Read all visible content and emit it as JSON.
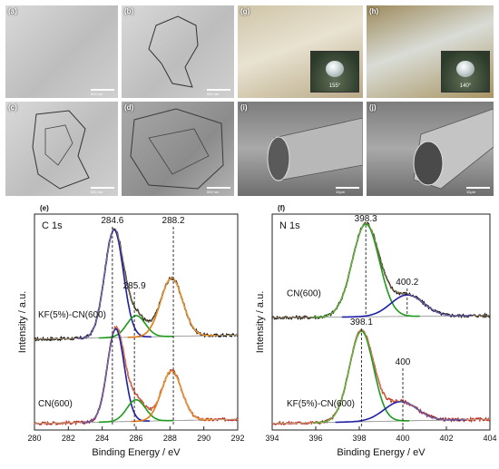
{
  "images": [
    {
      "label": "(a)",
      "scale": "500 nm"
    },
    {
      "label": "(b)",
      "scale": "500 nm"
    },
    {
      "label": "(c)",
      "scale": "500 nm"
    },
    {
      "label": "(d)",
      "scale": "500 nm"
    },
    {
      "label": "(g)",
      "angle": "155°"
    },
    {
      "label": "(h)",
      "angle": "140°"
    },
    {
      "label": "(i)",
      "scale": "10μm"
    },
    {
      "label": "(j)",
      "scale": "10μm"
    }
  ],
  "chart_data": [
    {
      "type": "line",
      "panel_label": "(e)",
      "title": "C 1s",
      "xlabel": "Binding Energy / eV",
      "ylabel": "Intensity / a.u.",
      "xlim": [
        280,
        292
      ],
      "xticks": [
        280,
        282,
        284,
        286,
        288,
        290,
        292
      ],
      "ylim": [
        0,
        1
      ],
      "peak_labels": [
        {
          "x": 284.6,
          "text": "284.6"
        },
        {
          "x": 285.9,
          "text": "285.9"
        },
        {
          "x": 288.2,
          "text": "288.2"
        }
      ],
      "series": [
        {
          "name": "KF(5%)-CN(600)",
          "offset": 0.42,
          "baseline": 0.02,
          "components": [
            {
              "center": 284.7,
              "height": 0.5,
              "sigma": 0.55,
              "color": "#1f1fa8"
            },
            {
              "center": 286.0,
              "height": 0.1,
              "sigma": 0.55,
              "color": "#1b9a1b"
            },
            {
              "center": 288.1,
              "height": 0.27,
              "sigma": 0.65,
              "color": "#e07a10"
            }
          ]
        },
        {
          "name": "CN(600)",
          "offset": 0.03,
          "baseline": 0.02,
          "components": [
            {
              "center": 284.8,
              "height": 0.43,
              "sigma": 0.5,
              "color": "#1f1fa8"
            },
            {
              "center": 286.0,
              "height": 0.1,
              "sigma": 0.55,
              "color": "#1b9a1b"
            },
            {
              "center": 288.1,
              "height": 0.23,
              "sigma": 0.6,
              "color": "#e07a10"
            }
          ]
        }
      ]
    },
    {
      "type": "line",
      "panel_label": "(f)",
      "title": "N 1s",
      "xlabel": "Binding Energy / eV",
      "ylabel": "Intensity / a.u.",
      "xlim": [
        394,
        404
      ],
      "xticks": [
        394,
        396,
        398,
        400,
        402,
        404
      ],
      "ylim": [
        0,
        1
      ],
      "peak_labels": [
        {
          "x": 398.3,
          "text": "398.3",
          "row": "top"
        },
        {
          "x": 400.2,
          "text": "400.2",
          "row": "top"
        },
        {
          "x": 398.1,
          "text": "398.1",
          "row": "bottom"
        },
        {
          "x": 400.0,
          "text": "400",
          "row": "bottom"
        }
      ],
      "series": [
        {
          "name": "CN(600)",
          "offset": 0.52,
          "baseline": 0.01,
          "components": [
            {
              "center": 398.3,
              "height": 0.43,
              "sigma": 0.62,
              "color": "#1b9a1b"
            },
            {
              "center": 400.2,
              "height": 0.1,
              "sigma": 0.75,
              "color": "#1f1fa8"
            }
          ]
        },
        {
          "name": "KF(5%)-CN(600)",
          "offset": 0.03,
          "baseline": 0.02,
          "components": [
            {
              "center": 398.1,
              "height": 0.42,
              "sigma": 0.55,
              "color": "#1b9a1b"
            },
            {
              "center": 399.9,
              "height": 0.09,
              "sigma": 0.75,
              "color": "#1f1fa8"
            }
          ]
        }
      ]
    }
  ]
}
